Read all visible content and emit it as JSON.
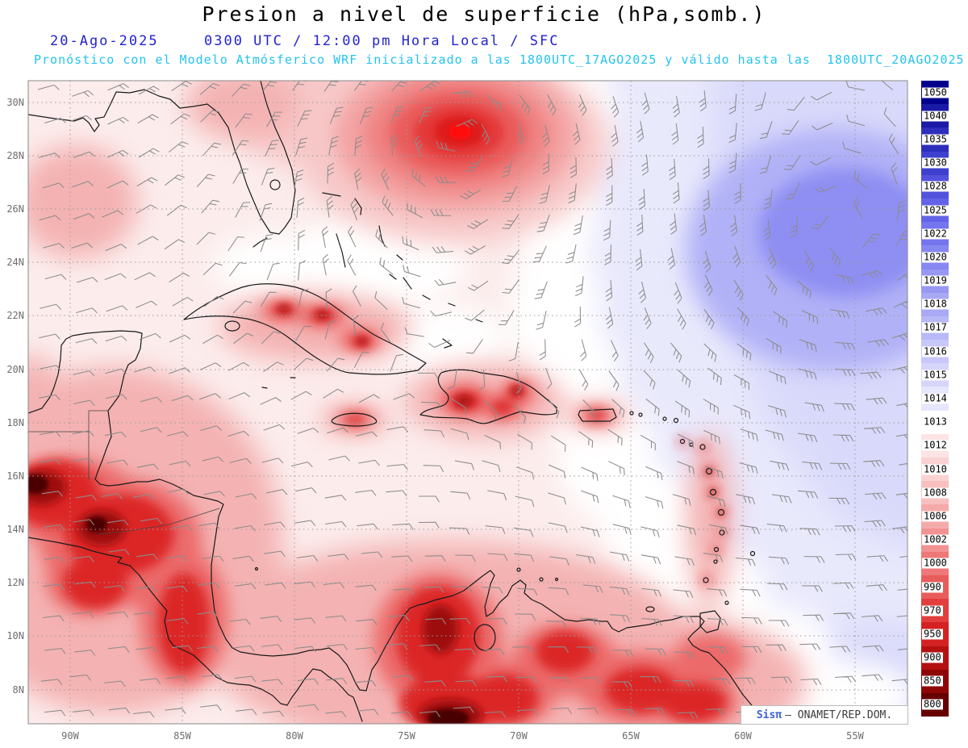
{
  "header": {
    "title": "Presion a nivel de superficie (hPa,somb.)",
    "date": "20-Ago-2025",
    "time": "0300 UTC / 12:00 pm Hora Local / SFC",
    "forecast_line": "Pronóstico con el Modelo Atmósferico WRF inicializado a las 1800UTC_17AGO2025 y válido hasta las  1800UTC_20AGO2025"
  },
  "attribution": {
    "brand": "Sisπ",
    "text": "— ONAMET/REP.DOM."
  },
  "chart_data": {
    "type": "heatmap",
    "title": "Presion a nivel de superficie (hPa,somb.)",
    "field": "sea level pressure (shaded) with 10m wind barbs",
    "unit": "hPa",
    "model": "WRF",
    "region": "Caribbean / Gulf of Mexico / western Atlantic",
    "valid": "20-Ago-2025 0300 UTC / 12:00 pm Hora Local / SFC",
    "initialized": "1800UTC_17AGO2025",
    "valid_until": "1800UTC_20AGO2025",
    "x_ticks": [
      "90W",
      "85W",
      "80W",
      "75W",
      "70W",
      "65W",
      "60W",
      "55W"
    ],
    "y_ticks": [
      "30N",
      "28N",
      "26N",
      "24N",
      "22N",
      "20N",
      "18N",
      "16N",
      "14N",
      "12N",
      "10N",
      "8N"
    ],
    "pressure_levels_hpa": [
      1050,
      1040,
      1035,
      1030,
      1028,
      1025,
      1022,
      1020,
      1019,
      1018,
      1017,
      1016,
      1015,
      1014,
      1013,
      1012,
      1010,
      1008,
      1006,
      1002,
      1000,
      990,
      970,
      950,
      900,
      850,
      800
    ],
    "colorbar": {
      "entries": [
        {
          "value": "1050",
          "color": "#00008b"
        },
        {
          "value": "1040",
          "color": "#1a1aa6"
        },
        {
          "value": "1035",
          "color": "#2e2ebd"
        },
        {
          "value": "1030",
          "color": "#4040cf"
        },
        {
          "value": "1028",
          "color": "#5252dc"
        },
        {
          "value": "1025",
          "color": "#6363e8"
        },
        {
          "value": "1022",
          "color": "#7575ee"
        },
        {
          "value": "1020",
          "color": "#8787f1"
        },
        {
          "value": "1019",
          "color": "#9898f3"
        },
        {
          "value": "1018",
          "color": "#a8a8f5"
        },
        {
          "value": "1017",
          "color": "#b8b8f7"
        },
        {
          "value": "1016",
          "color": "#c7c7f9"
        },
        {
          "value": "1015",
          "color": "#d6d6fa"
        },
        {
          "value": "1014",
          "color": "#e6e6fc"
        },
        {
          "value": "1013",
          "color": "#ffffff"
        },
        {
          "value": "1012",
          "color": "#fce4e4"
        },
        {
          "value": "1010",
          "color": "#fad2d2"
        },
        {
          "value": "1008",
          "color": "#f8bfbf"
        },
        {
          "value": "1006",
          "color": "#f5aaaa"
        },
        {
          "value": "1002",
          "color": "#f29292"
        },
        {
          "value": "1000",
          "color": "#ee7878"
        },
        {
          "value": "990",
          "color": "#e95c5c"
        },
        {
          "value": "970",
          "color": "#e23e3e"
        },
        {
          "value": "950",
          "color": "#d42222"
        },
        {
          "value": "900",
          "color": "#b31111"
        },
        {
          "value": "850",
          "color": "#8f0606"
        },
        {
          "value": "800",
          "color": "#660000"
        }
      ]
    },
    "features": [
      {
        "name": "tropical-cyclone-low",
        "approx_position": "28.5N 72.5W",
        "description": "closed low with deep red core (lowest pressures) and cyclonic wind barbs"
      },
      {
        "name": "subtropical-high",
        "approx_position": "25N 56W",
        "description": "broad blue high pressure area ~1020-1025 hPa over the central Atlantic"
      },
      {
        "name": "continental-heat-lows",
        "approx_position": "Central America / northern South America",
        "description": "red low pressure shading <=1002 hPa, darkest over Guatemala and Colombia"
      },
      {
        "name": "island-heat-lows",
        "approx_position": "Cuba, Jamaica, Hispaniola, Puerto Rico, Lesser Antilles",
        "description": "small local red pressure minima over the islands"
      }
    ],
    "overlays": [
      "wind barbs (gray)",
      "coastlines (black)",
      "dotted lat/lon grid"
    ]
  }
}
